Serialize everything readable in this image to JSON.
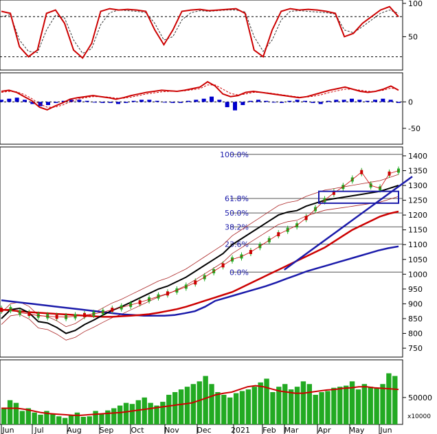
{
  "chart_data": {
    "type": "line",
    "x_labels": [
      "Jun",
      "Jul",
      "Aug",
      "Sep",
      "Oct",
      "Nov",
      "Dec",
      "2021",
      "Feb",
      "Mar",
      "Apr",
      "May",
      "Jun"
    ],
    "volume_unit_label": "x10000",
    "panels": [
      {
        "name": "stochastic",
        "y_ticks": [
          50,
          100
        ],
        "ylim": [
          0,
          105
        ],
        "reference_lines": [
          20,
          80
        ],
        "series": [
          {
            "values": [
              88,
              85,
              35,
              20,
              30,
              85,
              90,
              70,
              30,
              18,
              40,
              88,
              92,
              90,
              91,
              90,
              88,
              60,
              38,
              60,
              88,
              90,
              91,
              89,
              90,
              91,
              92,
              85,
              30,
              20,
              60,
              88,
              92,
              90,
              91,
              90,
              88,
              85,
              50,
              55,
              70,
              80,
              90,
              95,
              80
            ]
          },
          {
            "values": [
              80,
              83,
              45,
              28,
              26,
              60,
              82,
              78,
              45,
              25,
              32,
              68,
              86,
              90,
              89,
              88,
              86,
              70,
              45,
              50,
              75,
              86,
              89,
              88,
              89,
              90,
              90,
              87,
              50,
              28,
              45,
              75,
              88,
              89,
              88,
              87,
              86,
              84,
              60,
              56,
              65,
              75,
              85,
              90,
              85
            ]
          }
        ],
        "colors": {
          "k": "#cc0000",
          "d": "#333333",
          "ref": "#000000"
        }
      },
      {
        "name": "macd",
        "y_ticks": [
          0,
          -50
        ],
        "ylim": [
          -80,
          55
        ],
        "reference_lines": [
          0
        ],
        "histogram": [
          2,
          3,
          4,
          2,
          -2,
          -4,
          -3,
          -1,
          1,
          2,
          2,
          1,
          0,
          -1,
          -1,
          -2,
          -1,
          1,
          2,
          2,
          1,
          0,
          -1,
          -1,
          1,
          2,
          3,
          5,
          2,
          -5,
          -8,
          -3,
          1,
          2,
          1,
          0,
          -1,
          1,
          2,
          1,
          -1,
          -2,
          1,
          2,
          2,
          3,
          2,
          1,
          2,
          3,
          2,
          -1
        ],
        "series": [
          {
            "values": [
              20,
              22,
              18,
              10,
              2,
              -10,
              -15,
              -8,
              -2,
              5,
              8,
              10,
              12,
              10,
              8,
              5,
              8,
              12,
              15,
              18,
              20,
              22,
              21,
              20,
              22,
              25,
              28,
              38,
              30,
              15,
              10,
              12,
              18,
              20,
              18,
              16,
              14,
              12,
              10,
              8,
              10,
              14,
              18,
              22,
              25,
              28,
              24,
              20,
              18,
              20,
              24,
              30,
              22
            ]
          },
          {
            "values": [
              18,
              20,
              19,
              14,
              6,
              -4,
              -10,
              -10,
              -6,
              0,
              5,
              8,
              10,
              10,
              9,
              7,
              7,
              9,
              12,
              15,
              17,
              19,
              20,
              20,
              21,
              23,
              25,
              32,
              32,
              24,
              16,
              13,
              15,
              18,
              18,
              17,
              15,
              13,
              11,
              9,
              9,
              11,
              14,
              18,
              21,
              24,
              24,
              22,
              20,
              20,
              22,
              26,
              24
            ]
          }
        ],
        "colors": {
          "macd": "#cc0000",
          "signal": "#cc0000",
          "hist": "#0000cc"
        }
      },
      {
        "name": "price",
        "y_ticks": [
          750,
          800,
          850,
          900,
          950,
          1000,
          1050,
          1100,
          1150,
          1200,
          1250,
          1300,
          1350,
          1400
        ],
        "ylim": [
          720,
          1430
        ],
        "fibonacci": [
          {
            "label": "100.0%",
            "value": 1405
          },
          {
            "label": "61.8%",
            "value": 1256
          },
          {
            "label": "50.0%",
            "value": 1207
          },
          {
            "label": "38.2%",
            "value": 1160
          },
          {
            "label": "23.6%",
            "value": 1102
          },
          {
            "label": "0.0%",
            "value": 1007
          }
        ],
        "series": [
          {
            "values": [
              880,
              882,
              870,
              866,
              860,
              858,
              856,
              855,
              858,
              862,
              866,
              872,
              880,
              888,
              896,
              905,
              915,
              925,
              935,
              945,
              958,
              972,
              990,
              1010,
              1030,
              1050,
              1060,
              1075,
              1095,
              1115,
              1135,
              1150,
              1165,
              1190,
              1220,
              1250,
              1275,
              1295,
              1320,
              1345,
              1300,
              1290,
              1340,
              1350
            ]
          },
          {
            "values": [
              850,
              880,
              885,
              870,
              840,
              835,
              820,
              800,
              810,
              830,
              845,
              862,
              878,
              890,
              905,
              920,
              935,
              950,
              960,
              975,
              990,
              1010,
              1030,
              1050,
              1070,
              1100,
              1120,
              1140,
              1160,
              1180,
              1200,
              1210,
              1215,
              1230,
              1240,
              1250,
              1255,
              1260,
              1265,
              1270,
              1275,
              1280,
              1290,
              1300
            ]
          },
          {
            "values": [
              880,
              878,
              875,
              872,
              870,
              868,
              866,
              864,
              862,
              860,
              858,
              856,
              856,
              858,
              860,
              862,
              865,
              870,
              876,
              882,
              890,
              900,
              910,
              920,
              930,
              940,
              955,
              970,
              985,
              1000,
              1015,
              1030,
              1045,
              1060,
              1075,
              1090,
              1110,
              1130,
              1150,
              1165,
              1180,
              1195,
              1205,
              1212
            ]
          },
          {
            "values": [
              912,
              908,
              904,
              900,
              896,
              892,
              888,
              884,
              880,
              876,
              872,
              868,
              864,
              862,
              860,
              860,
              860,
              862,
              868,
              875,
              890,
              910,
              920,
              930,
              940,
              950,
              960,
              972,
              985,
              997,
              1010,
              1020,
              1030,
              1040,
              1050,
              1060,
              1070,
              1080,
              1088,
              1094
            ]
          }
        ],
        "colors": {
          "price": "#22aa22",
          "ma_short": "#cc0000",
          "ma_black": "#000000",
          "ma_red": "#cc0000",
          "ma_blue": "#1a1aaa",
          "fib": "#1a1aaa"
        }
      },
      {
        "name": "volume",
        "y_ticks": [
          50000
        ],
        "ylim": [
          0,
          120000
        ],
        "values": [
          30000,
          45000,
          40000,
          25000,
          30000,
          22000,
          18000,
          25000,
          20000,
          15000,
          12000,
          18000,
          22000,
          14000,
          15000,
          25000,
          20000,
          26000,
          30000,
          35000,
          40000,
          38000,
          45000,
          50000,
          40000,
          35000,
          42000,
          55000,
          60000,
          65000,
          70000,
          75000,
          80000,
          90000,
          75000,
          60000,
          55000,
          50000,
          58000,
          62000,
          65000,
          70000,
          78000,
          85000,
          60000,
          70000,
          75000,
          65000,
          70000,
          80000,
          75000,
          55000,
          60000,
          62000,
          68000,
          70000,
          72000,
          80000,
          65000,
          75000,
          70000,
          68000,
          75000,
          95000,
          90000
        ],
        "ma": [
          30000,
          30000,
          30000,
          28000,
          25000,
          22000,
          20000,
          19000,
          18000,
          17000,
          17000,
          18000,
          19000,
          20000,
          21000,
          22000,
          24000,
          26000,
          28000,
          30000,
          32000,
          34000,
          36000,
          38000,
          40000,
          45000,
          50000,
          55000,
          58000,
          60000,
          65000,
          70000,
          72000,
          70000,
          66000,
          62000,
          60000,
          58000,
          58000,
          60000,
          62000,
          64000,
          65000,
          67000,
          68000,
          70000,
          70000,
          68000,
          67000,
          66000,
          65000
        ],
        "colors": {
          "bars": "#22aa22",
          "ma": "#cc0000"
        }
      }
    ]
  }
}
